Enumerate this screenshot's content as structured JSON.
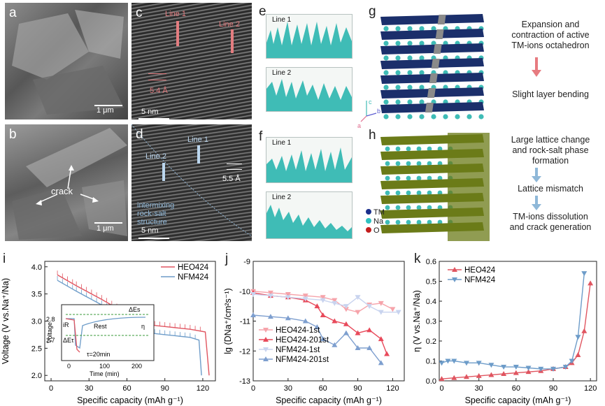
{
  "panels": {
    "a": {
      "label": "a",
      "scale": "1 μm"
    },
    "b": {
      "label": "b",
      "scale": "1 μm",
      "annotation": "crack"
    },
    "c": {
      "label": "c",
      "scale": "5 nm",
      "line1": "Line 1",
      "line2": "Line 2",
      "spacing": "5.4 Å"
    },
    "d": {
      "label": "d",
      "scale": "5 nm",
      "line1": "Line 1",
      "line2": "Line 2",
      "spacing": "5.5 Å",
      "region": "intermixing\nrock-salt\nstructure"
    },
    "e": {
      "label": "e",
      "line1": "Line 1",
      "line2": "Line 2"
    },
    "f": {
      "label": "f",
      "line1": "Line 1",
      "line2": "Line 2"
    },
    "g": {
      "label": "g",
      "axis_c": "c",
      "axis_b": "b",
      "axis_a": "a"
    },
    "h": {
      "label": "h",
      "legend": [
        "TM",
        "Na",
        "O"
      ]
    }
  },
  "flow": {
    "g_top": "Expansion and\ncontraction of active\nTM-ions octahedron",
    "g_bottom": "Slight layer bending",
    "h_1": "Large lattice change\nand rock-salt phase\nformation",
    "h_2": "Lattice mismatch",
    "h_3": "TM-ions dissolution\nand crack generation"
  },
  "colors": {
    "heo": "#e05560",
    "nfm": "#6d9cc9",
    "teal": "#3fbcb6",
    "lattice_blue": "#1b2f6b",
    "lattice_green": "#6b7b18"
  },
  "chart_data": [
    {
      "id": "i",
      "type": "line",
      "title": "",
      "xlabel": "Specific capacity (mAh g⁻¹)",
      "ylabel": "Voltage (V vs.Na⁺/Na)",
      "xlim": [
        -5,
        130
      ],
      "ylim": [
        1.9,
        4.1
      ],
      "xticks": [
        0,
        30,
        60,
        90,
        120
      ],
      "yticks": [
        2.0,
        2.5,
        3.0,
        3.5,
        4.0
      ],
      "legend": [
        "HEO424",
        "NFM424"
      ],
      "series": [
        {
          "name": "HEO424",
          "x": [
            5,
            20,
            40,
            55,
            60,
            70,
            90,
            110,
            122,
            125
          ],
          "y": [
            3.85,
            3.65,
            3.4,
            3.2,
            3.05,
            2.95,
            2.9,
            2.85,
            2.8,
            2.0
          ]
        },
        {
          "name": "NFM424",
          "x": [
            5,
            20,
            40,
            55,
            60,
            70,
            90,
            110,
            117,
            119
          ],
          "y": [
            3.75,
            3.55,
            3.3,
            3.1,
            2.95,
            2.8,
            2.75,
            2.7,
            2.65,
            2.0
          ]
        }
      ],
      "inset": {
        "xlabel": "Time (min)",
        "ylabel": "Voltage",
        "xticks": [
          0,
          100,
          200
        ],
        "yticks": [
          2.7,
          2.8
        ],
        "labels": {
          "iR": "iR",
          "dEt": "ΔEτ",
          "dEs": "ΔEs",
          "eta": "η",
          "rest": "Rest",
          "tau": "τ=20min"
        }
      }
    },
    {
      "id": "j",
      "type": "line",
      "xlabel": "Specific capacity (mAh g⁻¹)",
      "ylabel": "lg (DNa⁺/cm²s⁻¹)",
      "xlim": [
        0,
        130
      ],
      "ylim": [
        -13,
        -9
      ],
      "xticks": [
        0,
        30,
        60,
        90,
        120
      ],
      "yticks": [
        -9,
        -10,
        -11,
        -12,
        -13
      ],
      "series": [
        {
          "name": "HEO424-1st",
          "x": [
            0,
            15,
            30,
            45,
            60,
            70,
            80,
            90,
            100,
            110,
            120
          ],
          "y": [
            -10.0,
            -10.05,
            -10.1,
            -10.15,
            -10.2,
            -10.3,
            -10.6,
            -10.7,
            -10.45,
            -10.4,
            -10.6
          ]
        },
        {
          "name": "HEO424-201st",
          "x": [
            0,
            15,
            30,
            45,
            55,
            60,
            70,
            80,
            90,
            100,
            110,
            115
          ],
          "y": [
            -10.05,
            -10.15,
            -10.2,
            -10.3,
            -10.5,
            -10.8,
            -11.0,
            -11.1,
            -11.4,
            -11.3,
            -11.6,
            -12.1
          ]
        },
        {
          "name": "NFM424-1st",
          "x": [
            0,
            15,
            30,
            45,
            60,
            70,
            80,
            90,
            100,
            110,
            125
          ],
          "y": [
            -10.1,
            -10.15,
            -10.2,
            -10.25,
            -10.3,
            -10.4,
            -10.5,
            -10.2,
            -10.5,
            -10.7,
            -10.7
          ]
        },
        {
          "name": "NFM424-201st",
          "x": [
            0,
            15,
            30,
            45,
            55,
            60,
            70,
            80,
            90,
            100,
            110
          ],
          "y": [
            -10.8,
            -10.85,
            -10.9,
            -11.0,
            -11.2,
            -11.6,
            -11.8,
            -11.4,
            -11.9,
            -11.9,
            -12.4
          ]
        }
      ],
      "legend": [
        "HEO424-1st",
        "HEO424-201st",
        "NFM424-1st",
        "NFM424-201st"
      ]
    },
    {
      "id": "k",
      "type": "line",
      "xlabel": "Specific capacity (mAh g⁻¹)",
      "ylabel": "η (V vs.Na⁺/Na)",
      "xlim": [
        -2,
        125
      ],
      "ylim": [
        0,
        0.6
      ],
      "xticks": [
        0,
        30,
        60,
        90,
        120
      ],
      "yticks": [
        0.0,
        0.1,
        0.2,
        0.3,
        0.4,
        0.5,
        0.6
      ],
      "series": [
        {
          "name": "HEO424",
          "x": [
            0,
            10,
            20,
            30,
            40,
            50,
            60,
            70,
            80,
            90,
            100,
            105,
            110,
            115,
            120
          ],
          "y": [
            0.01,
            0.015,
            0.02,
            0.025,
            0.03,
            0.035,
            0.04,
            0.045,
            0.05,
            0.06,
            0.07,
            0.09,
            0.13,
            0.25,
            0.49
          ]
        },
        {
          "name": "NFM424",
          "x": [
            0,
            5,
            10,
            20,
            30,
            40,
            50,
            60,
            70,
            80,
            90,
            100,
            105,
            110,
            115
          ],
          "y": [
            0.09,
            0.1,
            0.1,
            0.09,
            0.09,
            0.08,
            0.07,
            0.07,
            0.065,
            0.06,
            0.06,
            0.07,
            0.1,
            0.22,
            0.54
          ]
        }
      ],
      "legend": [
        "HEO424",
        "NFM424"
      ]
    }
  ]
}
